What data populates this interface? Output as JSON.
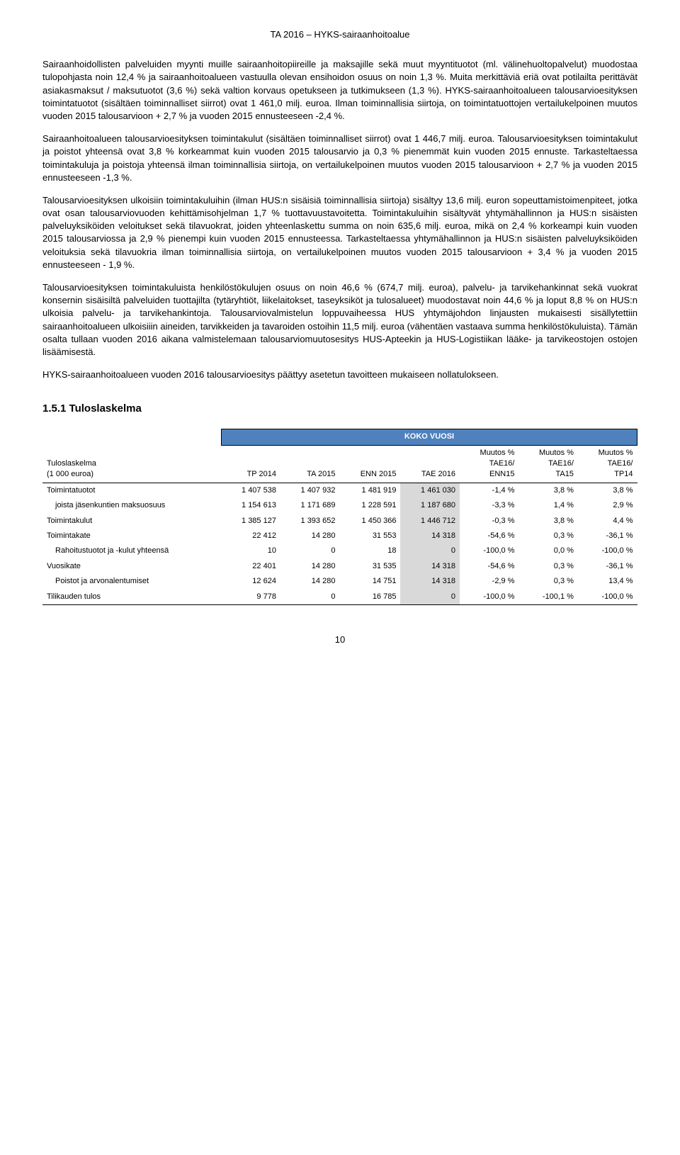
{
  "header": "TA 2016 – HYKS-sairaanhoitoalue",
  "paragraphs": [
    "Sairaanhoidollisten palveluiden myynti muille sairaanhoitopiireille ja maksajille sekä muut myyntituotot (ml. välinehuoltopalvelut) muodostaa tulopohjasta noin 12,4 % ja sairaanhoitoalueen vastuulla olevan ensihoidon osuus on noin 1,3 %. Muita merkittäviä eriä ovat potilailta perittävät asiakasmaksut / maksutuotot (3,6 %) sekä valtion korvaus opetukseen ja tutkimukseen (1,3 %). HYKS-sairaanhoitoalueen talousarvioesityksen toimintatuotot (sisältäen toiminnalliset siirrot) ovat 1 461,0 milj. euroa. Ilman toiminnallisia siirtoja, on toimintatuottojen vertailukelpoinen muutos vuoden 2015 talousarvioon + 2,7 % ja vuoden 2015 ennusteeseen -2,4 %.",
    "Sairaanhoitoalueen talousarvioesityksen toimintakulut (sisältäen toiminnalliset siirrot) ovat 1 446,7 milj. euroa. Talousarvioesityksen toimintakulut ja poistot yhteensä ovat 3,8 % korkeammat kuin vuoden 2015 talousarvio ja 0,3 % pienemmät kuin vuoden 2015 ennuste. Tarkasteltaessa toimintakuluja ja poistoja yhteensä ilman toiminnallisia siirtoja, on vertailukelpoinen muutos vuoden 2015 talousarvioon + 2,7 % ja vuoden 2015 ennusteeseen -1,3 %.",
    "Talousarvioesityksen ulkoisiin toimintakuluihin (ilman HUS:n sisäisiä toiminnallisia siirtoja) sisältyy 13,6 milj. euron sopeuttamistoimenpiteet, jotka ovat osan talousarviovuoden kehittämisohjelman 1,7 % tuottavuustavoitetta. Toimintakuluihin sisältyvät yhtymähallinnon ja HUS:n sisäisten palveluyksiköiden veloitukset sekä tilavuokrat, joiden yhteenlaskettu summa on noin 635,6 milj. euroa, mikä on 2,4 % korkeampi kuin vuoden 2015 talousarviossa ja 2,9 % pienempi kuin vuoden 2015 ennusteessa. Tarkasteltaessa yhtymähallinnon ja HUS:n sisäisten palveluyksiköiden veloituksia sekä tilavuokria ilman toiminnallisia siirtoja, on vertailukelpoinen muutos vuoden 2015 talousarvioon + 3,4 % ja vuoden 2015 ennusteeseen - 1,9 %.",
    "Talousarvioesityksen toimintakuluista henkilöstökulujen osuus on noin 46,6 % (674,7 milj. euroa), palvelu- ja tarvikehankinnat sekä vuokrat konsernin sisäisiltä palveluiden tuottajilta (tytäryhtiöt, liikelaitokset, taseyksiköt ja tulosalueet) muodostavat noin 44,6 % ja loput 8,8 % on HUS:n ulkoisia palvelu- ja tarvikehankintoja. Talousarviovalmistelun loppuvaiheessa HUS yhtymäjohdon linjausten mukaisesti sisällytettiin sairaanhoitoalueen ulkoisiiin aineiden, tarvikkeiden ja tavaroiden ostoihin 11,5 milj. euroa (vähentäen vastaava summa henkilöstökuluista). Tämän osalta tullaan vuoden 2016 aikana valmistelemaan talousarviomuutosesitys HUS-Apteekin ja HUS-Logistiikan lääke- ja tarvikeostojen ostojen lisäämisestä.",
    "HYKS-sairaanhoitoalueen vuoden 2016 talousarvioesitys päättyy asetetun tavoitteen mukaiseen nollatulokseen."
  ],
  "sectionHeading": "1.5.1   Tuloslaskelma",
  "table": {
    "kokoVuosi": "KOKO VUOSI",
    "leftHead1": "Tuloslaskelma",
    "leftHead2": "(1 000 euroa)",
    "cols": [
      {
        "l1": "",
        "l2": "TP 2014",
        "l3": ""
      },
      {
        "l1": "",
        "l2": "TA 2015",
        "l3": ""
      },
      {
        "l1": "",
        "l2": "ENN 2015",
        "l3": ""
      },
      {
        "l1": "",
        "l2": "TAE 2016",
        "l3": ""
      },
      {
        "l1": "Muutos %",
        "l2": "TAE16/",
        "l3": "ENN15"
      },
      {
        "l1": "Muutos %",
        "l2": "TAE16/",
        "l3": "TA15"
      },
      {
        "l1": "Muutos %",
        "l2": "TAE16/",
        "l3": "TP14"
      }
    ],
    "rows": [
      {
        "label": "Toimintatuotot",
        "indent": false,
        "vals": [
          "1 407 538",
          "1 407 932",
          "1 481 919",
          "1 461 030",
          "-1,4 %",
          "3,8 %",
          "3,8 %"
        ]
      },
      {
        "label": "joista jäsenkuntien maksuosuus",
        "indent": true,
        "vals": [
          "1 154 613",
          "1 171 689",
          "1 228 591",
          "1 187 680",
          "-3,3 %",
          "1,4 %",
          "2,9 %"
        ]
      },
      {
        "label": "Toimintakulut",
        "indent": false,
        "vals": [
          "1 385 127",
          "1 393 652",
          "1 450 366",
          "1 446 712",
          "-0,3 %",
          "3,8 %",
          "4,4 %"
        ]
      },
      {
        "label": "Toimintakate",
        "indent": false,
        "vals": [
          "22 412",
          "14 280",
          "31 553",
          "14 318",
          "-54,6 %",
          "0,3 %",
          "-36,1 %"
        ]
      },
      {
        "label": "Rahoitustuotot ja -kulut yhteensä",
        "indent": true,
        "vals": [
          "10",
          "0",
          "18",
          "0",
          "-100,0 %",
          "0,0 %",
          "-100,0 %"
        ]
      },
      {
        "label": "Vuosikate",
        "indent": false,
        "vals": [
          "22 401",
          "14 280",
          "31 535",
          "14 318",
          "-54,6 %",
          "0,3 %",
          "-36,1 %"
        ]
      },
      {
        "label": "Poistot ja arvonalentumiset",
        "indent": true,
        "vals": [
          "12 624",
          "14 280",
          "14 751",
          "14 318",
          "-2,9 %",
          "0,3 %",
          "13,4 %"
        ]
      },
      {
        "label": "Tilikauden tulos",
        "indent": false,
        "vals": [
          "9 778",
          "0",
          "16 785",
          "0",
          "-100,0 %",
          "-100,1 %",
          "-100,0 %"
        ]
      }
    ]
  },
  "pageNumber": "10",
  "styles": {
    "headerBg": "#4f81bd",
    "highlightBg": "#d9d9d9"
  }
}
